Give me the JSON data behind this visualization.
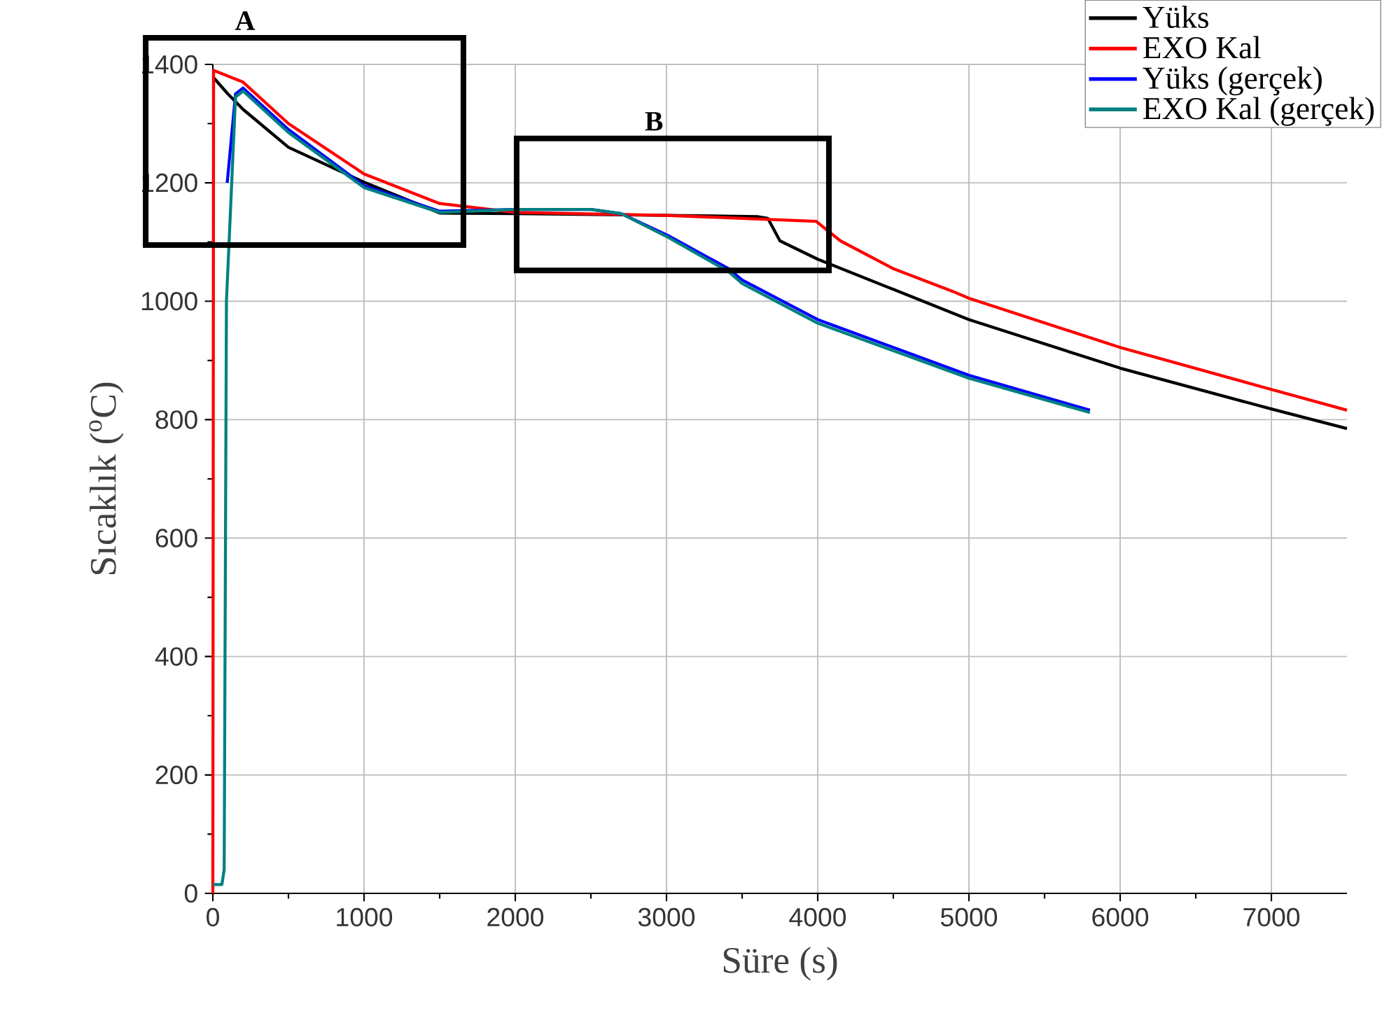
{
  "chart_data": {
    "type": "line",
    "xlabel": "Süre (s)",
    "ylabel": "Sıcaklık ($^{o}$C)",
    "xlim": [
      0,
      7500
    ],
    "ylim": [
      0,
      1400
    ],
    "xticks": [
      0,
      1000,
      2000,
      3000,
      4000,
      5000,
      6000,
      7000
    ],
    "yticks": [
      0,
      200,
      400,
      600,
      800,
      1000,
      1200,
      1400
    ],
    "grid": true,
    "legend": "top right",
    "line_style": "solid",
    "marker": "none",
    "annotations": [
      "A",
      "B"
    ],
    "series": [
      {
        "name": "Yüks",
        "color": "#000000",
        "x": [
          0,
          100,
          200,
          500,
          1000,
          1500,
          2000,
          3000,
          3600,
          3670,
          3750,
          4000,
          4500,
          5000,
          6000,
          7000,
          7500
        ],
        "values": [
          1379,
          1350,
          1324,
          1260,
          1201,
          1149,
          1148,
          1145,
          1143,
          1140,
          1102,
          1071,
          1020,
          969,
          887,
          818,
          785
        ]
      },
      {
        "name": "EXO Kal",
        "color": "#ff0000",
        "x": [
          0,
          5,
          200,
          500,
          1000,
          1500,
          2000,
          3000,
          3990,
          4150,
          4500,
          4890,
          5000,
          6000,
          7000,
          7500
        ],
        "values": [
          0,
          1390,
          1370,
          1300,
          1215,
          1165,
          1150,
          1145,
          1135,
          1102,
          1055,
          1017,
          1005,
          922,
          851,
          816
        ]
      },
      {
        "name": "Yüks (gerçek)",
        "color": "#0000ff",
        "x": [
          95,
          150,
          200,
          500,
          1000,
          1500,
          2000,
          2500,
          2700,
          3010,
          3410,
          3500,
          4000,
          5000,
          5800
        ],
        "values": [
          1200,
          1350,
          1360,
          1290,
          1195,
          1152,
          1155,
          1155,
          1148,
          1111,
          1055,
          1036,
          969,
          875,
          816
        ]
      },
      {
        "name": "EXO Kal (gerçek)",
        "color": "#008080",
        "x": [
          0,
          60,
          75,
          90,
          150,
          200,
          500,
          1000,
          1500,
          2000,
          2500,
          2700,
          3010,
          3410,
          3500,
          4000,
          5000,
          5800
        ],
        "values": [
          15,
          15,
          40,
          1000,
          1345,
          1355,
          1285,
          1192,
          1150,
          1155,
          1155,
          1148,
          1108,
          1050,
          1030,
          963,
          870,
          812
        ]
      }
    ]
  }
}
